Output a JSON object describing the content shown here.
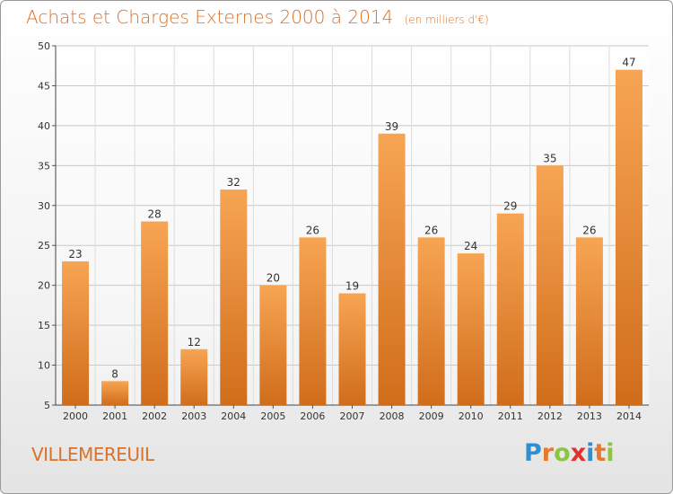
{
  "header": {
    "title": "Achats et Charges Externes 2000 à 2014",
    "subtitle": "(en milliers d'€)"
  },
  "footer": {
    "commune": "VILLEMEREUIL",
    "logo_letters": [
      "P",
      "r",
      "o",
      "x",
      "i",
      "t",
      "i"
    ],
    "logo_colors": [
      "#2f8fd1",
      "#e6782b",
      "#8cc63f",
      "#e0322f",
      "#2f8fd1",
      "#e6782b",
      "#8cc63f"
    ]
  },
  "chart_data": {
    "type": "bar",
    "categories": [
      "2000",
      "2001",
      "2002",
      "2003",
      "2004",
      "2005",
      "2006",
      "2007",
      "2008",
      "2009",
      "2010",
      "2011",
      "2012",
      "2013",
      "2014"
    ],
    "values": [
      23,
      8,
      28,
      12,
      32,
      20,
      26,
      19,
      39,
      26,
      24,
      29,
      35,
      26,
      47
    ],
    "data_labels": [
      "23",
      "8",
      "28",
      "12",
      "32",
      "20",
      "26",
      "19",
      "39",
      "26",
      "24",
      "29",
      "35",
      "26",
      "47"
    ],
    "ylim": [
      5,
      50
    ],
    "yticks": [
      5,
      10,
      15,
      20,
      25,
      30,
      35,
      40,
      45,
      50
    ],
    "ytick_labels": [
      "5",
      "10",
      "15",
      "20",
      "25",
      "30",
      "35",
      "40",
      "45",
      "50"
    ],
    "grid": true,
    "bar_color_top": "#f7a553",
    "bar_color_bottom": "#d06d1b"
  }
}
